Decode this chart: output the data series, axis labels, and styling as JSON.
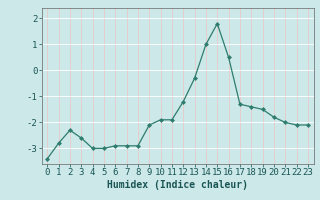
{
  "x": [
    0,
    1,
    2,
    3,
    4,
    5,
    6,
    7,
    8,
    9,
    10,
    11,
    12,
    13,
    14,
    15,
    16,
    17,
    18,
    19,
    20,
    21,
    22,
    23
  ],
  "y": [
    -3.4,
    -2.8,
    -2.3,
    -2.6,
    -3.0,
    -3.0,
    -2.9,
    -2.9,
    -2.9,
    -2.1,
    -1.9,
    -1.9,
    -1.2,
    -0.3,
    1.0,
    1.8,
    0.5,
    -1.3,
    -1.4,
    -1.5,
    -1.8,
    -2.0,
    -2.1,
    -2.1
  ],
  "xlabel": "Humidex (Indice chaleur)",
  "ylim": [
    -3.6,
    2.4
  ],
  "xlim": [
    -0.5,
    23.5
  ],
  "yticks": [
    -3,
    -2,
    -1,
    0,
    1,
    2
  ],
  "xticks": [
    0,
    1,
    2,
    3,
    4,
    5,
    6,
    7,
    8,
    9,
    10,
    11,
    12,
    13,
    14,
    15,
    16,
    17,
    18,
    19,
    20,
    21,
    22,
    23
  ],
  "line_color": "#2e7d6e",
  "marker_color": "#2e7d6e",
  "bg_color": "#cce8e8",
  "grid_color": "#e8c8c8",
  "xlabel_fontsize": 7,
  "tick_fontsize": 6.5
}
